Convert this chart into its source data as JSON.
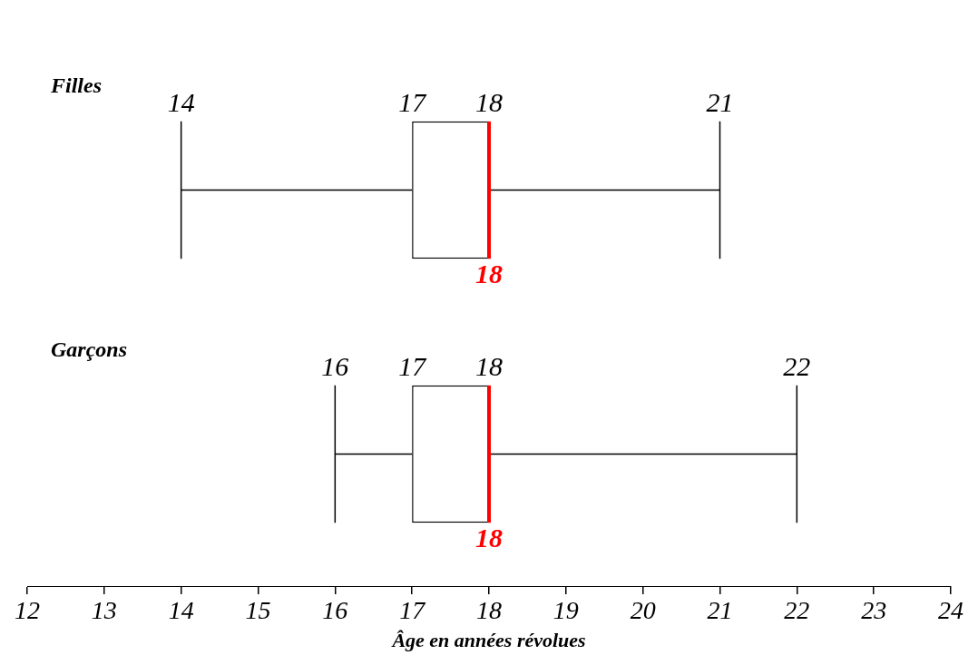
{
  "chart_data": {
    "type": "box",
    "orientation": "horizontal",
    "xlabel": "Âge en années révolues",
    "categories": [
      "Filles",
      "Garçons"
    ],
    "boxes": [
      {
        "low": 14,
        "q1": 17,
        "median": 18,
        "q3": 18,
        "high": 21
      },
      {
        "low": 16,
        "q1": 17,
        "median": 18,
        "q3": 18,
        "high": 22
      }
    ],
    "annotations": [
      {
        "text": "14",
        "x": 14,
        "y": "Filles"
      },
      {
        "text": "17",
        "x": 17,
        "y": "Filles"
      },
      {
        "text": "18",
        "x": 18,
        "y": "Filles"
      },
      {
        "text": "21",
        "x": 21,
        "y": "Filles"
      },
      {
        "text": "18",
        "x": 18,
        "y": "Filles"
      },
      {
        "text": "16",
        "x": 16,
        "y": "Garçons"
      },
      {
        "text": "17",
        "x": 17,
        "y": "Garçons"
      },
      {
        "text": "18",
        "x": 18,
        "y": "Garçons"
      },
      {
        "text": "22",
        "x": 22,
        "y": "Garçons"
      },
      {
        "text": "18",
        "x": 18,
        "y": "Garçons"
      }
    ],
    "grid": false,
    "legend": false,
    "xlim": [
      12,
      24
    ],
    "xticks": [
      12,
      13,
      14,
      15,
      16,
      17,
      18,
      19,
      20,
      21,
      22,
      23,
      24
    ]
  }
}
